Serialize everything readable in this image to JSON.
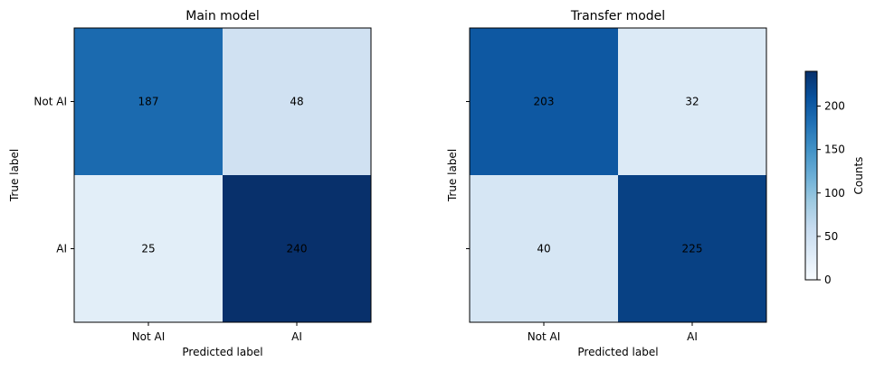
{
  "chart_data": [
    {
      "type": "heatmap",
      "title": "Main model",
      "xlabel": "Predicted label",
      "ylabel": "True label",
      "x_categories": [
        "Not AI",
        "AI"
      ],
      "y_categories": [
        "Not AI",
        "AI"
      ],
      "values": [
        [
          187,
          48
        ],
        [
          25,
          240
        ]
      ],
      "colormap": "Blues",
      "show_y_tick_labels": true
    },
    {
      "type": "heatmap",
      "title": "Transfer model",
      "xlabel": "Predicted label",
      "ylabel": "True label",
      "x_categories": [
        "Not AI",
        "AI"
      ],
      "y_categories": [
        "Not AI",
        "AI"
      ],
      "values": [
        [
          203,
          32
        ],
        [
          40,
          225
        ]
      ],
      "colormap": "Blues",
      "show_y_tick_labels": false
    }
  ],
  "colorbar": {
    "label": "Counts",
    "vmin": 0,
    "vmax": 240,
    "ticks": [
      0,
      50,
      100,
      150,
      200
    ]
  }
}
